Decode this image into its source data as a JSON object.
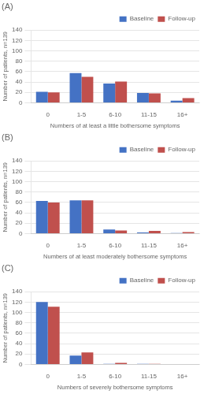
{
  "chart_data": [
    {
      "type": "bar",
      "title": "(A)",
      "categories": [
        "0",
        "1-5",
        "6-10",
        "11-15",
        "16+"
      ],
      "series": [
        {
          "name": "Baseline",
          "color": "#4472C4",
          "values": [
            21,
            57,
            37,
            19,
            4
          ]
        },
        {
          "name": "Follow-up",
          "color": "#C0504D",
          "values": [
            20,
            50,
            41,
            18,
            9
          ]
        }
      ],
      "xlabel": "Numbers of at least a little bothersome symptoms",
      "ylabel": "Number of patients, n=139",
      "ylim": [
        0,
        140
      ],
      "yticks": [
        0,
        20,
        40,
        60,
        80,
        100,
        120,
        140
      ],
      "grid": true,
      "legend": "upper right"
    },
    {
      "type": "bar",
      "title": "(B)",
      "categories": [
        "0",
        "1-5",
        "6-10",
        "11-15",
        "16+"
      ],
      "series": [
        {
          "name": "Baseline",
          "color": "#4472C4",
          "values": [
            63,
            64,
            8,
            2,
            1
          ]
        },
        {
          "name": "Follow-up",
          "color": "#C0504D",
          "values": [
            60,
            64,
            6,
            5,
            3
          ]
        }
      ],
      "xlabel": "Numbers of at least moderately bothersome symptoms",
      "ylabel": "Number of patients, n=139",
      "ylim": [
        0,
        140
      ],
      "yticks": [
        0,
        20,
        40,
        60,
        80,
        100,
        120,
        140
      ],
      "grid": true,
      "legend": "upper right"
    },
    {
      "type": "bar",
      "title": "(C)",
      "categories": [
        "0",
        "1-5",
        "6-10",
        "11-15",
        "16+"
      ],
      "series": [
        {
          "name": "Baseline",
          "color": "#4472C4",
          "values": [
            120,
            17,
            1,
            1,
            0
          ]
        },
        {
          "name": "Follow-up",
          "color": "#C0504D",
          "values": [
            111,
            23,
            3,
            1,
            0
          ]
        }
      ],
      "xlabel": "Numbers of severely bothersome symptoms",
      "ylabel": "Number of patients, n=139",
      "ylim": [
        0,
        140
      ],
      "yticks": [
        0,
        20,
        40,
        60,
        80,
        100,
        120,
        140
      ],
      "grid": true,
      "legend": "upper right"
    }
  ]
}
